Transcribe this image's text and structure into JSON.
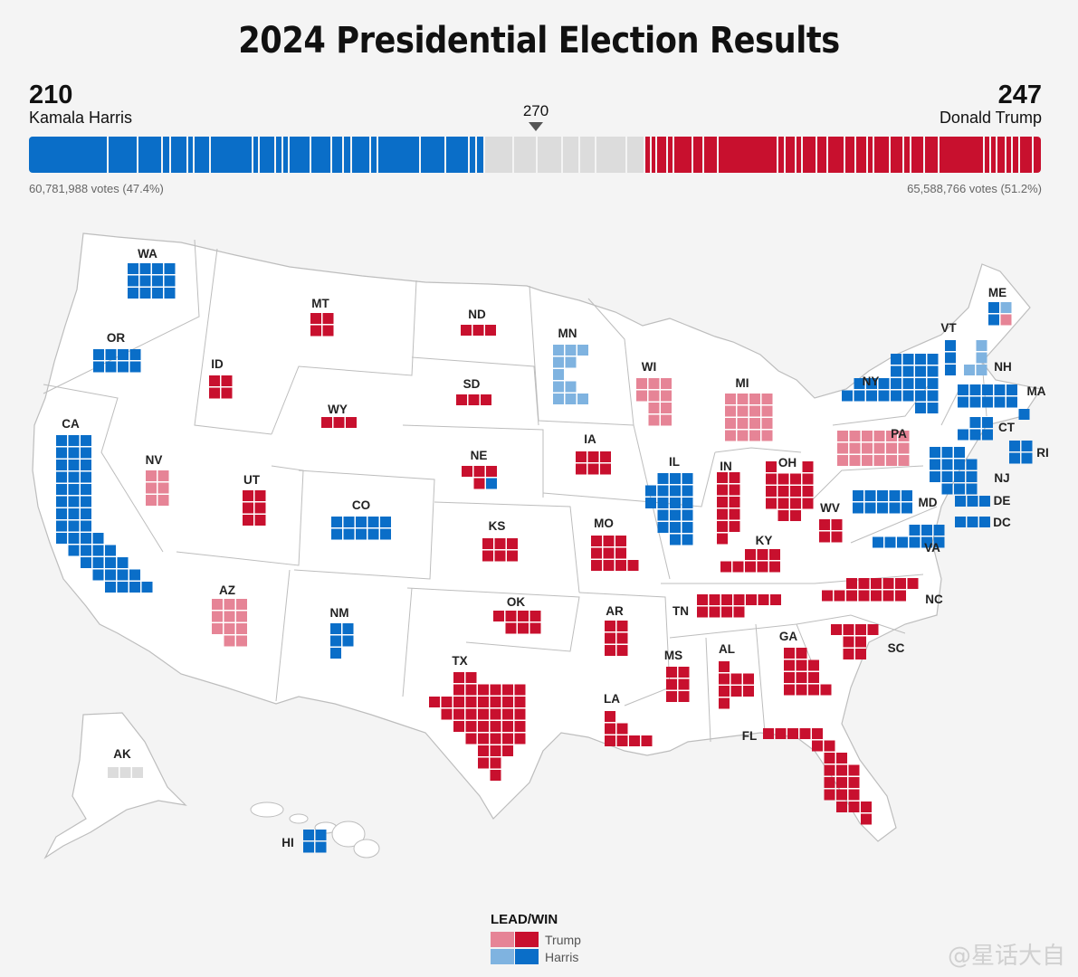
{
  "title": "2024 Presidential Election Results",
  "harris": {
    "electoral_votes": "210",
    "name": "Kamala Harris",
    "popular_vote": "60,781,988 votes (47.4%)"
  },
  "trump": {
    "electoral_votes": "247",
    "name": "Donald Trump",
    "popular_vote": "65,588,766 votes (51.2%)"
  },
  "threshold_label": "270",
  "colors": {
    "harris_win": "#0a6ec8",
    "harris_lead": "#7fb3e0",
    "trump_win": "#c8102e",
    "trump_lead": "#e68496",
    "undecided": "#dcdcdc",
    "land": "#ffffff",
    "border": "#bdbdbd"
  },
  "bar_segments": {
    "harris": [
      54,
      19,
      16,
      4,
      11,
      3,
      10,
      28,
      3,
      10,
      4,
      3,
      14,
      13,
      7,
      4,
      12,
      4,
      28,
      16,
      15,
      4,
      4
    ],
    "undecided": [
      19,
      15,
      16,
      11,
      10,
      20,
      11
    ],
    "trump": [
      3,
      3,
      6,
      3,
      12,
      6,
      9,
      40,
      4,
      6,
      3,
      9,
      6,
      11,
      6,
      7,
      3,
      10,
      8,
      4,
      8,
      9,
      30,
      3,
      3,
      5,
      3,
      4,
      8,
      5
    ]
  },
  "legend": {
    "title": "LEAD/WIN",
    "trump_label": "Trump",
    "harris_label": "Harris"
  },
  "watermark": "@星话大自",
  "states": [
    {
      "abbr": "WA",
      "ev": 12,
      "status": "harris_win"
    },
    {
      "abbr": "OR",
      "ev": 8,
      "status": "harris_win"
    },
    {
      "abbr": "CA",
      "ev": 54,
      "status": "harris_win"
    },
    {
      "abbr": "NV",
      "ev": 6,
      "status": "trump_lead"
    },
    {
      "abbr": "ID",
      "ev": 4,
      "status": "trump_win"
    },
    {
      "abbr": "MT",
      "ev": 4,
      "status": "trump_win"
    },
    {
      "abbr": "WY",
      "ev": 3,
      "status": "trump_win"
    },
    {
      "abbr": "UT",
      "ev": 6,
      "status": "trump_win"
    },
    {
      "abbr": "AZ",
      "ev": 11,
      "status": "trump_lead"
    },
    {
      "abbr": "CO",
      "ev": 10,
      "status": "harris_win"
    },
    {
      "abbr": "NM",
      "ev": 5,
      "status": "harris_win"
    },
    {
      "abbr": "ND",
      "ev": 3,
      "status": "trump_win"
    },
    {
      "abbr": "SD",
      "ev": 3,
      "status": "trump_win"
    },
    {
      "abbr": "NE",
      "ev": 5,
      "status": "trump_win"
    },
    {
      "abbr": "KS",
      "ev": 6,
      "status": "trump_win"
    },
    {
      "abbr": "OK",
      "ev": 7,
      "status": "trump_win"
    },
    {
      "abbr": "TX",
      "ev": 40,
      "status": "trump_win"
    },
    {
      "abbr": "MN",
      "ev": 10,
      "status": "harris_lead"
    },
    {
      "abbr": "IA",
      "ev": 6,
      "status": "trump_win"
    },
    {
      "abbr": "MO",
      "ev": 10,
      "status": "trump_win"
    },
    {
      "abbr": "AR",
      "ev": 6,
      "status": "trump_win"
    },
    {
      "abbr": "LA",
      "ev": 8,
      "status": "trump_win"
    },
    {
      "abbr": "WI",
      "ev": 10,
      "status": "trump_lead"
    },
    {
      "abbr": "IL",
      "ev": 19,
      "status": "harris_win"
    },
    {
      "abbr": "MI",
      "ev": 15,
      "status": "trump_lead"
    },
    {
      "abbr": "IN",
      "ev": 11,
      "status": "trump_win"
    },
    {
      "abbr": "OH",
      "ev": 17,
      "status": "trump_win"
    },
    {
      "abbr": "KY",
      "ev": 8,
      "status": "trump_win"
    },
    {
      "abbr": "TN",
      "ev": 11,
      "status": "trump_win"
    },
    {
      "abbr": "MS",
      "ev": 6,
      "status": "trump_win"
    },
    {
      "abbr": "AL",
      "ev": 9,
      "status": "trump_win"
    },
    {
      "abbr": "GA",
      "ev": 16,
      "status": "trump_win"
    },
    {
      "abbr": "FL",
      "ev": 30,
      "status": "trump_win"
    },
    {
      "abbr": "SC",
      "ev": 9,
      "status": "trump_win"
    },
    {
      "abbr": "NC",
      "ev": 16,
      "status": "trump_win"
    },
    {
      "abbr": "VA",
      "ev": 13,
      "status": "harris_win"
    },
    {
      "abbr": "WV",
      "ev": 4,
      "status": "trump_win"
    },
    {
      "abbr": "MD",
      "ev": 10,
      "status": "harris_win"
    },
    {
      "abbr": "DE",
      "ev": 3,
      "status": "harris_win"
    },
    {
      "abbr": "DC",
      "ev": 3,
      "status": "harris_win"
    },
    {
      "abbr": "PA",
      "ev": 19,
      "status": "trump_lead"
    },
    {
      "abbr": "NJ",
      "ev": 14,
      "status": "harris_win"
    },
    {
      "abbr": "NY",
      "ev": 28,
      "status": "harris_win"
    },
    {
      "abbr": "CT",
      "ev": 7,
      "status": "harris_win"
    },
    {
      "abbr": "RI",
      "ev": 4,
      "status": "harris_win"
    },
    {
      "abbr": "MA",
      "ev": 11,
      "status": "harris_win"
    },
    {
      "abbr": "VT",
      "ev": 3,
      "status": "harris_win"
    },
    {
      "abbr": "NH",
      "ev": 4,
      "status": "harris_lead"
    },
    {
      "abbr": "ME",
      "ev": 4,
      "status": "mixed"
    },
    {
      "abbr": "AK",
      "ev": 3,
      "status": "undecided"
    },
    {
      "abbr": "HI",
      "ev": 4,
      "status": "harris_win"
    }
  ]
}
